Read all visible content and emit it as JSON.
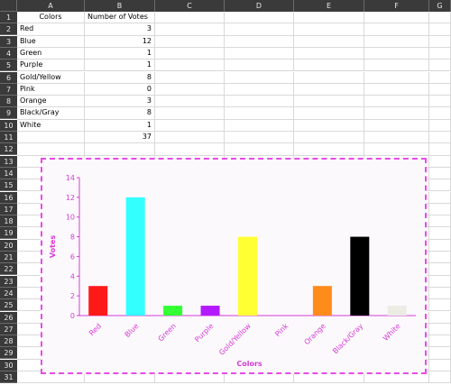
{
  "sheet": {
    "columns": [
      "A",
      "B",
      "C",
      "D",
      "E",
      "F",
      "G"
    ],
    "rows": [
      "1",
      "2",
      "3",
      "4",
      "5",
      "6",
      "7",
      "8",
      "9",
      "10",
      "11",
      "12",
      "13",
      "14",
      "15",
      "16",
      "17",
      "18",
      "19",
      "20",
      "21",
      "22",
      "23",
      "24",
      "25",
      "26",
      "27",
      "28",
      "29",
      "30",
      "31"
    ],
    "header_a": "Colors",
    "header_b": "Number of Votes",
    "data": [
      {
        "color": "Red",
        "votes": "3"
      },
      {
        "color": "Blue",
        "votes": "12"
      },
      {
        "color": "Green",
        "votes": "1"
      },
      {
        "color": "Purple",
        "votes": "1"
      },
      {
        "color": "Gold/Yellow",
        "votes": "8"
      },
      {
        "color": "Pink",
        "votes": "0"
      },
      {
        "color": "Orange",
        "votes": "3"
      },
      {
        "color": "Black/Gray",
        "votes": "8"
      },
      {
        "color": "White",
        "votes": "1"
      }
    ],
    "total": "37"
  },
  "chart_data": {
    "type": "bar",
    "title": "",
    "xlabel": "Colors",
    "ylabel": "Votes",
    "categories": [
      "Red",
      "Blue",
      "Green",
      "Purple",
      "Gold/Yellow",
      "Pink",
      "Orange",
      "Black/Gray",
      "White"
    ],
    "values": [
      3,
      12,
      1,
      1,
      8,
      0,
      3,
      8,
      1
    ],
    "bar_colors": [
      "#ff1a1a",
      "#33ffff",
      "#33ff33",
      "#b31aff",
      "#ffff33",
      "#ff66cc",
      "#ff8c1a",
      "#000000",
      "#ecece4"
    ],
    "ylim": [
      0,
      14
    ],
    "yticks": [
      "0",
      "2",
      "4",
      "6",
      "8",
      "10",
      "12",
      "14"
    ],
    "grid": false,
    "legend": "none",
    "accent_color": "#d63ad6"
  }
}
